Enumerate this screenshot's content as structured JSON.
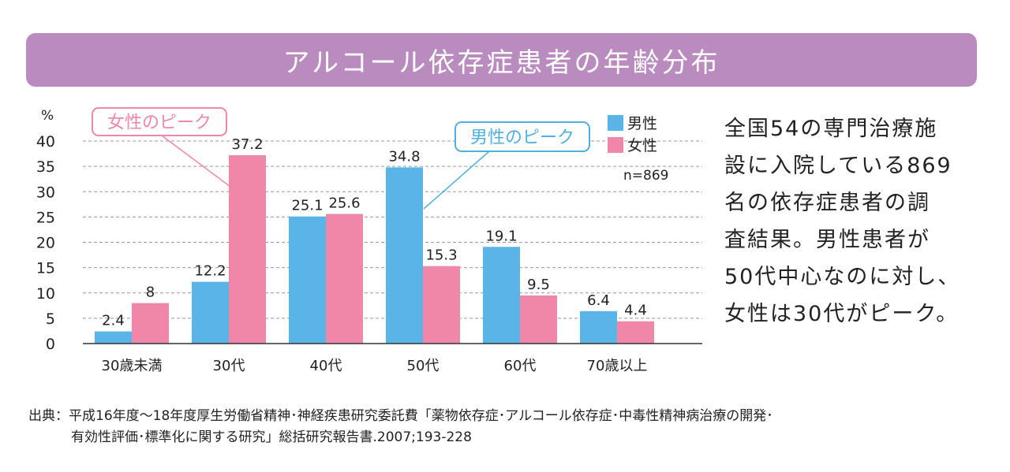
{
  "title": "アルコール依存症患者の年齢分布",
  "side_text": "全国54の専門治療施\n設に入院している869\n名の依存症患者の調\n査結果。男性患者が\n50代中心なのに対し、\n女性は30代がピーク。",
  "source": {
    "line1": "出典：平成16年度〜18年度厚生労働省精神･神経疾患研究委託費「薬物依存症･アルコール依存症･中毒性精神病治療の開発･",
    "line2": "有効性評価･標準化に関する研究」総括研究報告書.2007;193-228"
  },
  "chart_data": {
    "type": "bar",
    "ylabel": "%",
    "ylim": [
      0,
      40
    ],
    "yticks": [
      0,
      5,
      10,
      15,
      20,
      25,
      30,
      35,
      40
    ],
    "grid": true,
    "categories": [
      "30歳未満",
      "30代",
      "40代",
      "50代",
      "60代",
      "70歳以上"
    ],
    "series": [
      {
        "name": "男性",
        "color": "#5ab4e6",
        "values": [
          2.4,
          12.2,
          25.1,
          34.8,
          19.1,
          6.4
        ]
      },
      {
        "name": "女性",
        "color": "#ef88a8",
        "values": [
          8,
          37.2,
          25.6,
          15.3,
          9.5,
          4.4
        ]
      }
    ],
    "legend_placement": "top-right",
    "note": "n=869",
    "annotations": [
      {
        "text": "女性のピーク",
        "color": "#ef88a8",
        "category": "30代"
      },
      {
        "text": "男性のピーク",
        "color": "#4fb0e0",
        "category": "50代"
      }
    ]
  }
}
